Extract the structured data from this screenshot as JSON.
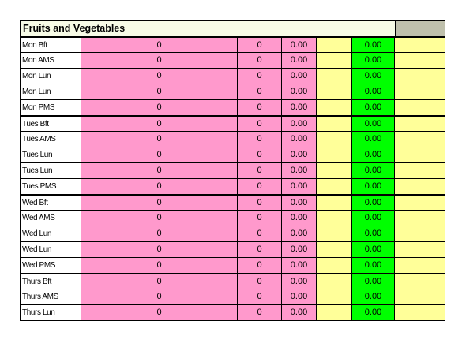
{
  "sheet": {
    "title": "Fruits and Vegetables",
    "colors": {
      "pink": "#ff99cc",
      "yellow": "#ffff99",
      "green": "#00ff00",
      "header_grey": "#bfc0ac"
    },
    "rows": [
      {
        "label": "Mon Bft",
        "a": "0",
        "b": "0",
        "c": "0.00",
        "g": "0.00"
      },
      {
        "label": "Mon AMS",
        "a": "0",
        "b": "0",
        "c": "0.00",
        "g": "0.00"
      },
      {
        "label": "Mon Lun",
        "a": "0",
        "b": "0",
        "c": "0.00",
        "g": "0.00"
      },
      {
        "label": "Mon Lun",
        "a": "0",
        "b": "0",
        "c": "0.00",
        "g": "0.00"
      },
      {
        "label": "Mon PMS",
        "a": "0",
        "b": "0",
        "c": "0.00",
        "g": "0.00"
      },
      {
        "label": "Tues Bft",
        "a": "0",
        "b": "0",
        "c": "0.00",
        "g": "0.00"
      },
      {
        "label": "Tues AMS",
        "a": "0",
        "b": "0",
        "c": "0.00",
        "g": "0.00"
      },
      {
        "label": "Tues Lun",
        "a": "0",
        "b": "0",
        "c": "0.00",
        "g": "0.00"
      },
      {
        "label": "Tues Lun",
        "a": "0",
        "b": "0",
        "c": "0.00",
        "g": "0.00"
      },
      {
        "label": "Tues PMS",
        "a": "0",
        "b": "0",
        "c": "0.00",
        "g": "0.00"
      },
      {
        "label": "Wed Bft",
        "a": "0",
        "b": "0",
        "c": "0.00",
        "g": "0.00"
      },
      {
        "label": "Wed AMS",
        "a": "0",
        "b": "0",
        "c": "0.00",
        "g": "0.00"
      },
      {
        "label": "Wed Lun",
        "a": "0",
        "b": "0",
        "c": "0.00",
        "g": "0.00"
      },
      {
        "label": "Wed Lun",
        "a": "0",
        "b": "0",
        "c": "0.00",
        "g": "0.00"
      },
      {
        "label": "Wed PMS",
        "a": "0",
        "b": "0",
        "c": "0.00",
        "g": "0.00"
      },
      {
        "label": "Thurs Bft",
        "a": "0",
        "b": "0",
        "c": "0.00",
        "g": "0.00"
      },
      {
        "label": "Thurs AMS",
        "a": "0",
        "b": "0",
        "c": "0.00",
        "g": "0.00"
      },
      {
        "label": "Thurs Lun",
        "a": "0",
        "b": "0",
        "c": "0.00",
        "g": "0.00"
      }
    ]
  }
}
